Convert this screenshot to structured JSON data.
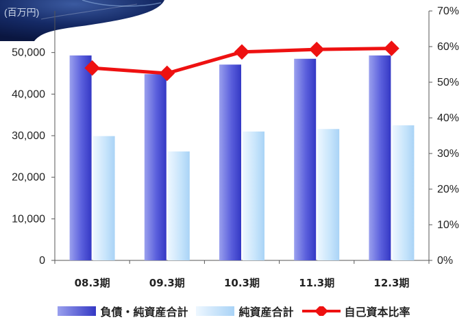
{
  "unit": "(百万円)",
  "chart_data": {
    "type": "bar+line",
    "categories": [
      "08.3期",
      "09.3期",
      "10.3期",
      "11.3期",
      "12.3期"
    ],
    "series": [
      {
        "name": "負債・純資産合計",
        "kind": "bar",
        "axis": "left",
        "color": "#4a4fd0",
        "values": [
          49300,
          44800,
          47100,
          48500,
          49300
        ]
      },
      {
        "name": "純資産合計",
        "kind": "bar",
        "axis": "left",
        "color": "#b8dcf8",
        "values": [
          29900,
          26200,
          31000,
          31600,
          32500
        ]
      },
      {
        "name": "自己資本比率",
        "kind": "line",
        "axis": "right",
        "color": "#ee1111",
        "values": [
          54.0,
          52.5,
          58.5,
          59.2,
          59.5
        ]
      }
    ],
    "y_left": {
      "ticks": [
        "0",
        "10,000",
        "20,000",
        "30,000",
        "40,000",
        "50,000"
      ],
      "range": [
        0,
        60000
      ]
    },
    "y_right": {
      "ticks": [
        "0%",
        "10%",
        "20%",
        "30%",
        "40%",
        "50%",
        "60%",
        "70%"
      ],
      "range": [
        0,
        70
      ]
    },
    "grid": false,
    "legend_position": "bottom"
  }
}
